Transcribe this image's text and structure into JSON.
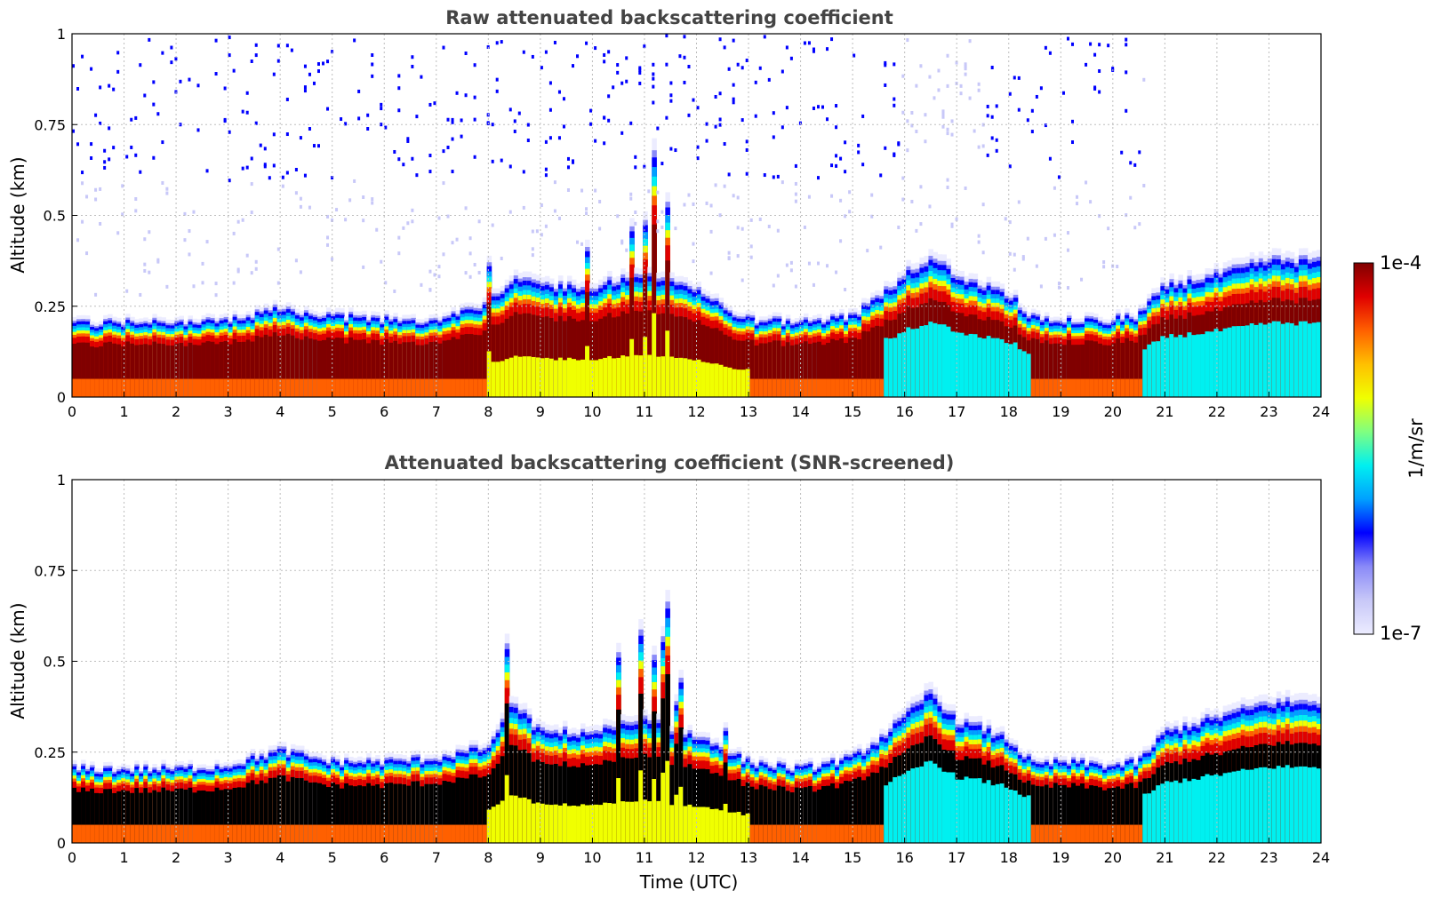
{
  "chart_data": [
    {
      "type": "heatmap",
      "title": "Raw attenuated backscattering coefficient",
      "xlabel": "",
      "ylabel": "Altitude (km)",
      "xlim": [
        0,
        24
      ],
      "ylim": [
        0,
        1
      ],
      "x_ticks": [
        "0",
        "1",
        "2",
        "3",
        "4",
        "5",
        "6",
        "7",
        "8",
        "9",
        "10",
        "11",
        "12",
        "13",
        "14",
        "15",
        "16",
        "17",
        "18",
        "19",
        "20",
        "21",
        "22",
        "23",
        "24"
      ],
      "y_ticks": [
        "0",
        "0.25",
        "0.5",
        "0.75",
        "1"
      ],
      "grid": true,
      "screened": false,
      "layer_top_km": {
        "time_utc": [
          0,
          1,
          2,
          3,
          4,
          5,
          6,
          7,
          8,
          8.5,
          9,
          10,
          11,
          12,
          13,
          14,
          15,
          15.5,
          16,
          16.5,
          17,
          17.5,
          18,
          18.5,
          19,
          20,
          20.5,
          21,
          22,
          23,
          24
        ],
        "values": [
          0.2,
          0.2,
          0.2,
          0.21,
          0.24,
          0.22,
          0.21,
          0.21,
          0.25,
          0.33,
          0.3,
          0.3,
          0.33,
          0.29,
          0.21,
          0.2,
          0.22,
          0.27,
          0.33,
          0.38,
          0.33,
          0.3,
          0.28,
          0.21,
          0.21,
          0.21,
          0.22,
          0.3,
          0.33,
          0.37,
          0.37
        ]
      }
    },
    {
      "type": "heatmap",
      "title": "Attenuated backscattering coefficient (SNR-screened)",
      "xlabel": "Time (UTC)",
      "ylabel": "Altitude (km)",
      "xlim": [
        0,
        24
      ],
      "ylim": [
        0,
        1
      ],
      "x_ticks": [
        "0",
        "1",
        "2",
        "3",
        "4",
        "5",
        "6",
        "7",
        "8",
        "9",
        "10",
        "11",
        "12",
        "13",
        "14",
        "15",
        "16",
        "17",
        "18",
        "19",
        "20",
        "21",
        "22",
        "23",
        "24"
      ],
      "y_ticks": [
        "0",
        "0.25",
        "0.5",
        "0.75",
        "1"
      ],
      "grid": true,
      "screened": true,
      "layer_top_km": {
        "time_utc": [
          0,
          1,
          2,
          3,
          4,
          5,
          6,
          7,
          8,
          8.5,
          9,
          10,
          11,
          12,
          13,
          14,
          15,
          15.5,
          16,
          16.5,
          17,
          17.5,
          18,
          18.5,
          19,
          20,
          20.5,
          21,
          22,
          23,
          24
        ],
        "values": [
          0.2,
          0.2,
          0.2,
          0.21,
          0.25,
          0.22,
          0.22,
          0.23,
          0.26,
          0.38,
          0.3,
          0.3,
          0.33,
          0.29,
          0.22,
          0.2,
          0.23,
          0.28,
          0.34,
          0.41,
          0.33,
          0.31,
          0.28,
          0.21,
          0.22,
          0.21,
          0.22,
          0.3,
          0.34,
          0.38,
          0.38
        ]
      }
    }
  ],
  "colorbar": {
    "label": "1/m/sr",
    "max_label": "1e-4",
    "min_label": "1e-7",
    "scale": "log",
    "colormap": [
      "#ececff",
      "#c8c8f8",
      "#8a8af8",
      "#0000ff",
      "#00a0ff",
      "#00f0f0",
      "#80ff80",
      "#f0ff00",
      "#ffc000",
      "#ff6000",
      "#e00000",
      "#800000"
    ]
  },
  "masked_color": "#000000"
}
